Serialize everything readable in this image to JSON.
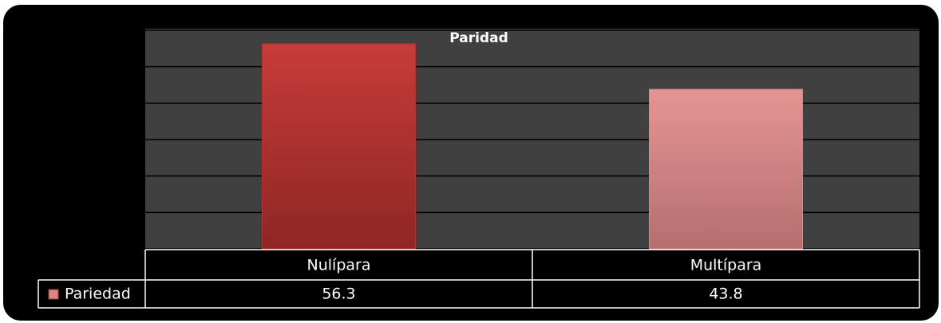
{
  "chart_data": {
    "type": "bar",
    "title": "Paridad",
    "categories": [
      "Nulípara",
      "Multípara"
    ],
    "series": [
      {
        "name": "Pariedad",
        "values": [
          56.3,
          43.8
        ],
        "colors": [
          "#b8302e",
          "#d98888"
        ]
      }
    ],
    "ylim": [
      0,
      60
    ],
    "yticks": [
      0,
      10,
      20,
      30,
      40,
      50,
      60
    ],
    "grid": true,
    "data_table": true
  }
}
